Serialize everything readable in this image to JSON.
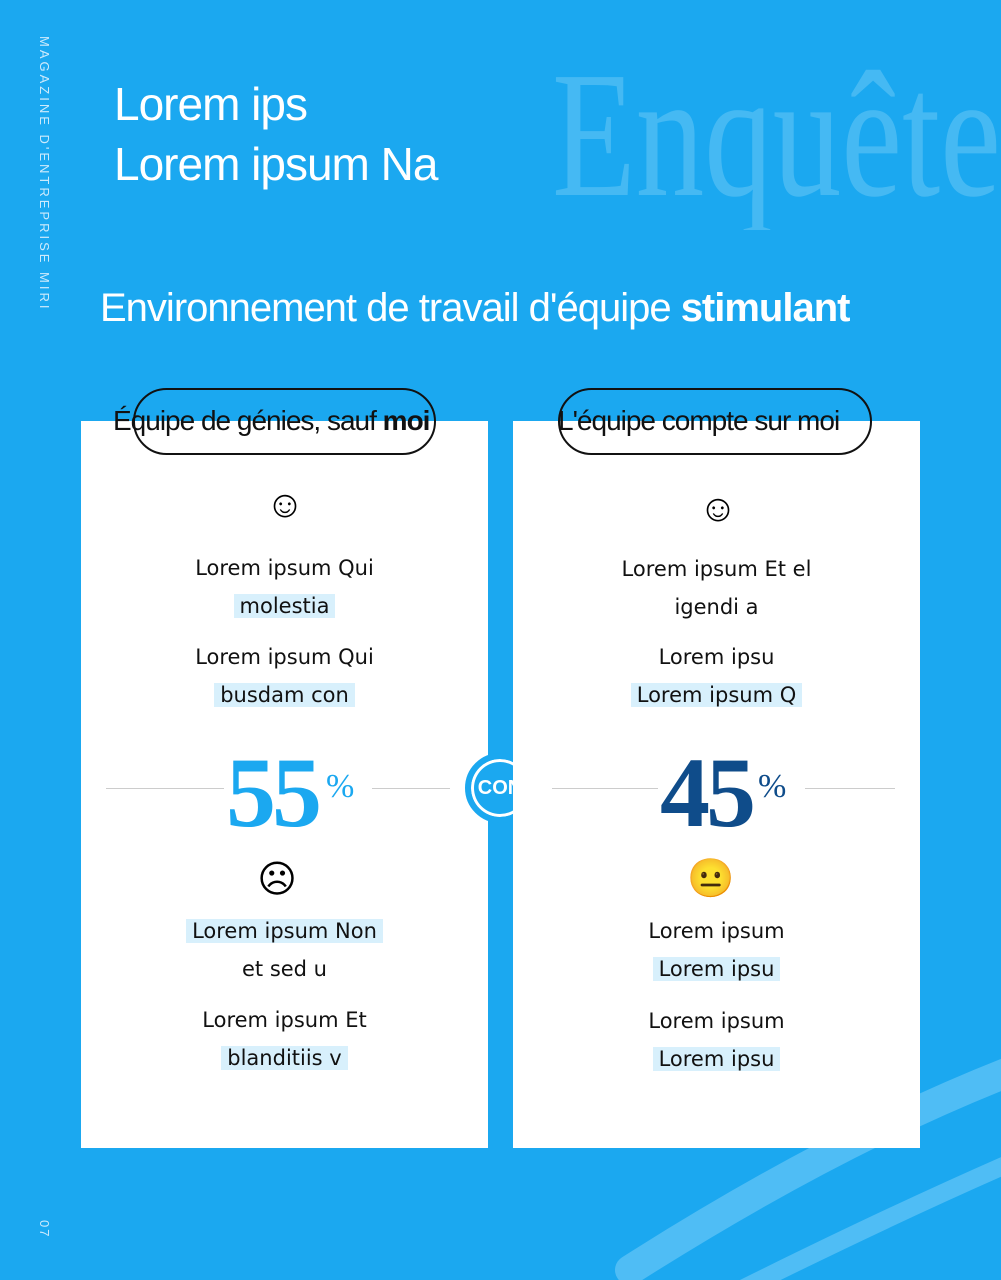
{
  "magazine": "MAGAZINE D'ENTREPRISE MIRI",
  "page_number": "07",
  "title_line1": "Lorem ips",
  "title_line2": "Lorem ipsum Na",
  "watermark": "Enquête",
  "subtitle": {
    "regular": "Environnement de travail d'équipe ",
    "bold": "stimulant"
  },
  "separator": "CON",
  "left": {
    "label_regular": "Équipe de génies, sauf ",
    "label_bold": "moi",
    "top_icon": "crown-smiley-icon",
    "p1a": "Lorem ipsum Qui",
    "p1b": "molestia",
    "p2a": "Lorem ipsum Qui",
    "p2b": "busdam con",
    "percent": "55",
    "percent_sign": "%",
    "percent_value": 55,
    "color": "#1ba8f0",
    "bottom_icon": "upset-face-icon",
    "p3a": "Lorem ipsum Non",
    "p3b": "et sed u",
    "p4a": "Lorem ipsum Et",
    "p4b": "blanditiis v"
  },
  "right": {
    "label": "L'équipe compte sur moi",
    "top_icon": "angel-smiley-icon",
    "p1a": "Lorem ipsum Et el",
    "p1b": "igendi a",
    "p2a": "Lorem ipsu",
    "p2b": "Lorem ipsum Q",
    "percent": "45",
    "percent_sign": "%",
    "percent_value": 45,
    "color": "#0f4c8a",
    "bottom_icon": "neutral-face-icon",
    "p3a": "Lorem ipsum",
    "p3b": "Lorem ipsu",
    "p4a": "Lorem ipsum",
    "p4b": "Lorem ipsu"
  }
}
